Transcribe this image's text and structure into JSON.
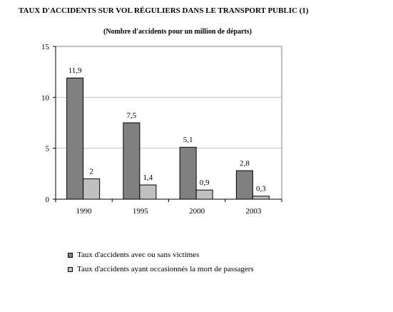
{
  "chart_data": {
    "type": "bar",
    "title": "TAUX D'ACCIDENTS SUR VOL RÉGULIERS DANS LE TRANSPORT PUBLIC (1)",
    "subtitle": "(Nombre d'accidents pour un million de départs)",
    "categories": [
      "1990",
      "1995",
      "2000",
      "2003"
    ],
    "series": [
      {
        "name": "Taux d'accidents avec ou sans victimes",
        "values": [
          11.9,
          7.5,
          5.1,
          2.8
        ],
        "labels": [
          "11,9",
          "7,5",
          "5,1",
          "2,8"
        ],
        "color": "#808080"
      },
      {
        "name": "Taux d'accidents ayant occasionnés la mort de passagers",
        "values": [
          2,
          1.4,
          0.9,
          0.3
        ],
        "labels": [
          "2",
          "1,4",
          "0,9",
          "0,3"
        ],
        "color": "#c0c0c0"
      }
    ],
    "ylim": [
      0,
      15
    ],
    "yticks": [
      0,
      5,
      10,
      15
    ],
    "grid": true,
    "legend_position": "bottom"
  }
}
